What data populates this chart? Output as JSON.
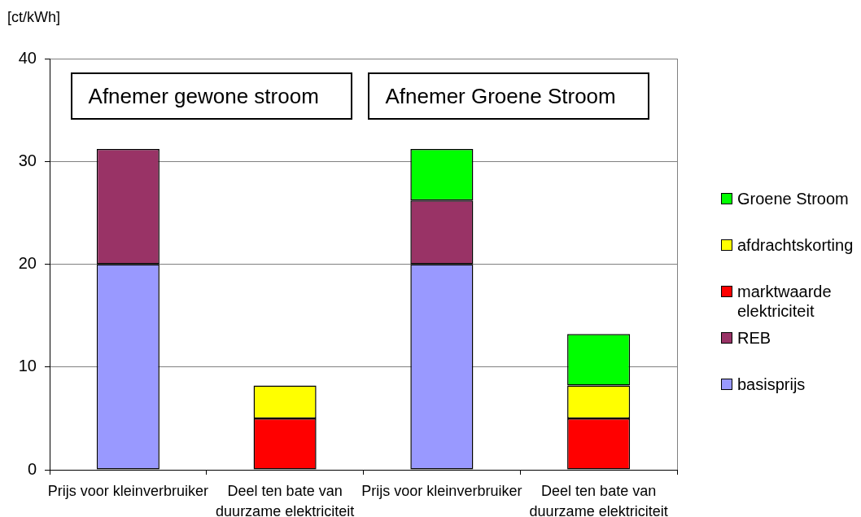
{
  "chart_data": {
    "type": "bar",
    "stacked": true,
    "ylabel": "[ct/kWh]",
    "categories": [
      "Prijs voor kleinverbruiker",
      "Deel ten bate van duurzame elektriciteit",
      "Prijs voor kleinverbruiker",
      "Deel ten bate van duurzame elektriciteit"
    ],
    "series": [
      {
        "name": "basisprijs",
        "color": "#9999ff",
        "values": [
          20,
          null,
          20,
          null
        ]
      },
      {
        "name": "REB",
        "color": "#993366",
        "values": [
          11.2,
          null,
          6.2,
          null
        ]
      },
      {
        "name": "marktwaarde elektriciteit",
        "color": "#ff0000",
        "values": [
          null,
          5,
          null,
          5
        ]
      },
      {
        "name": "afdrachtskorting",
        "color": "#ffff00",
        "values": [
          null,
          3.2,
          null,
          3.2
        ]
      },
      {
        "name": "Groene Stroom",
        "color": "#00ff00",
        "values": [
          null,
          null,
          5,
          5
        ]
      }
    ],
    "ylim": [
      0,
      40
    ],
    "yticks": [
      0,
      10,
      20,
      30,
      40
    ],
    "grid": "y",
    "legend": "right",
    "annotations": [
      "Afnemer gewone stroom",
      "Afnemer Groene Stroom"
    ]
  }
}
